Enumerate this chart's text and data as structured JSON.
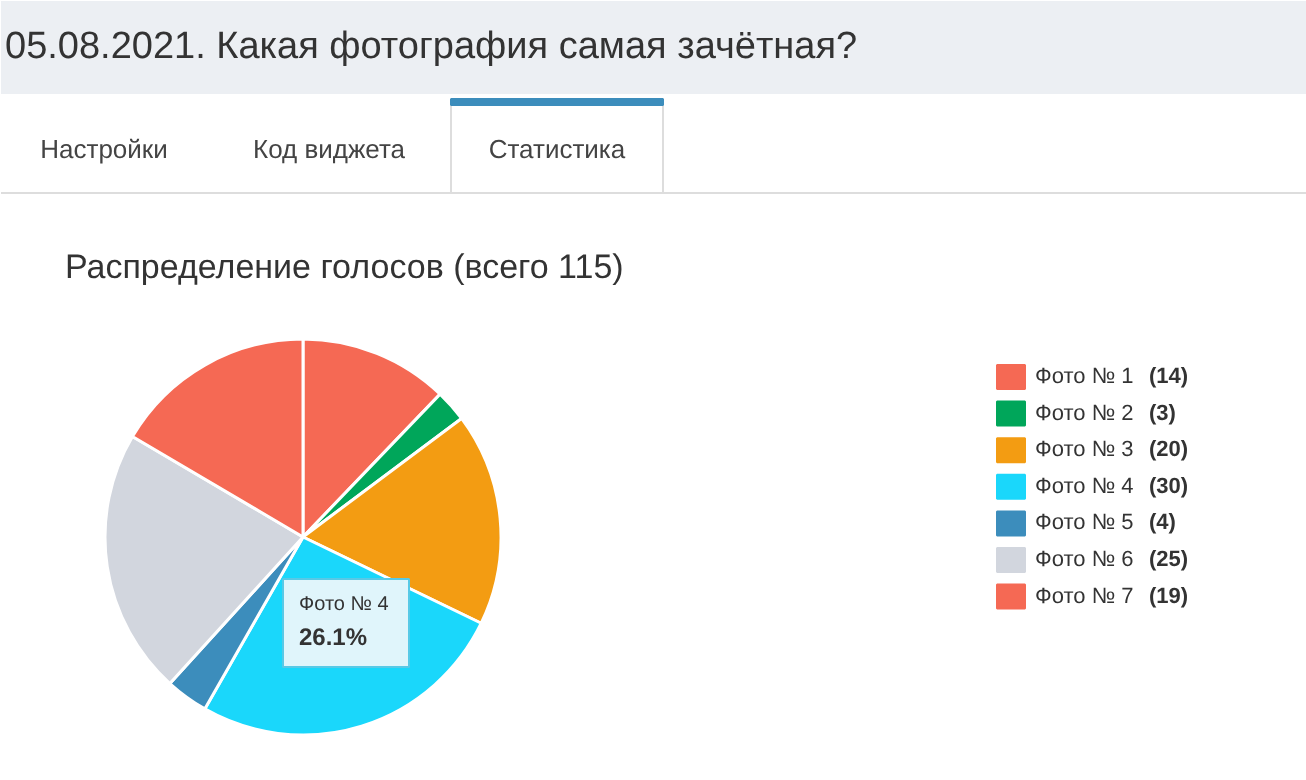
{
  "chart_data": {
    "type": "pie",
    "title": "05.08.2021. Какая фотография самая зачётная?",
    "subtitle": "Распределение голосов (всего 115)",
    "categories": [
      "Фото № 1",
      "Фото № 2",
      "Фото № 3",
      "Фото № 4",
      "Фото № 5",
      "Фото № 6",
      "Фото № 7"
    ],
    "values": [
      14,
      3,
      20,
      30,
      4,
      25,
      19
    ],
    "colors": [
      "#f56954",
      "#00a65a",
      "#f39c12",
      "#1ad7fb",
      "#3c8dbc",
      "#d2d6de",
      "#f56954"
    ],
    "data_labels": true,
    "value_labels": [
      "(14)",
      "(3)",
      "(20)",
      "(30)",
      "(4)",
      "(25)",
      "(19)"
    ],
    "legend": "right",
    "annotations": [
      "Настройки",
      "Код виджета",
      "Статистика",
      "Фото № 4\n26.1%"
    ]
  }
}
